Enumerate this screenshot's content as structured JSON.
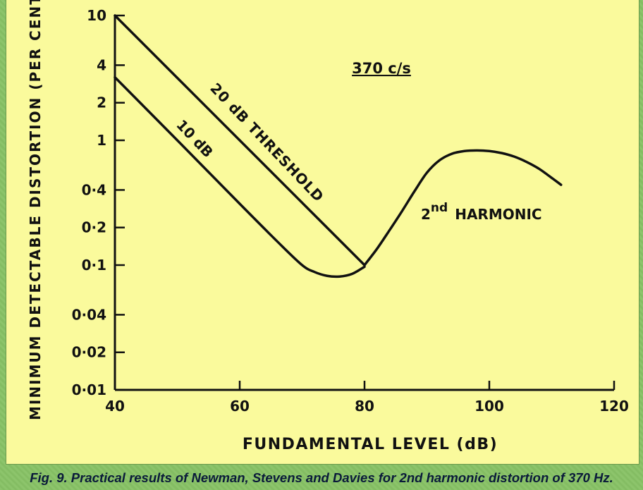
{
  "figure_caption": "Fig. 9. Practical results of Newman, Stevens and Davies for 2nd harmonic distortion of 370 Hz.",
  "colors": {
    "plot_background": "#fafa9c",
    "frame": "#8cc26a",
    "ink": "#111111",
    "caption_text": "#0a1a3a"
  },
  "chart_data": {
    "type": "line",
    "title": "370 c/s",
    "xlabel": "FUNDAMENTAL LEVEL (dB)",
    "ylabel": "MINIMUM DETECTABLE DISTORTION (PER CENT)",
    "xlim": [
      40,
      120
    ],
    "ylim": [
      0.01,
      10
    ],
    "yscale": "log",
    "grid": false,
    "xticks": [
      40,
      60,
      80,
      100,
      120
    ],
    "xtick_labels": [
      "40",
      "60",
      "80",
      "100",
      "120"
    ],
    "yticks": [
      10,
      4,
      2,
      1,
      0.4,
      0.2,
      0.1,
      0.04,
      0.02,
      0.01
    ],
    "ytick_labels": [
      "10",
      "4",
      "2",
      "1",
      "0·4",
      "0·2",
      "0·1",
      "0·04",
      "0·02",
      "0·01"
    ],
    "series": [
      {
        "name": "20 dB THRESHOLD",
        "x": [
          40,
          80
        ],
        "y": [
          10,
          0.1
        ]
      },
      {
        "name": "10 dB",
        "x": [
          40,
          50,
          60,
          66,
          70,
          72,
          74,
          76,
          78,
          80
        ],
        "y": [
          3.2,
          1.0,
          0.31,
          0.155,
          0.1,
          0.088,
          0.082,
          0.081,
          0.085,
          0.097
        ]
      },
      {
        "name": "2nd HARMONIC",
        "x": [
          80,
          82,
          84,
          86,
          88,
          90,
          92,
          94,
          96,
          98,
          100,
          102,
          104,
          106,
          108,
          110,
          111.5
        ],
        "y": [
          0.1,
          0.135,
          0.19,
          0.27,
          0.39,
          0.55,
          0.69,
          0.78,
          0.82,
          0.83,
          0.82,
          0.79,
          0.74,
          0.67,
          0.59,
          0.5,
          0.44
        ]
      }
    ],
    "annotations": [
      {
        "text": "20 dB THRESHOLD",
        "series": "20 dB THRESHOLD"
      },
      {
        "text": "10 dB",
        "series": "10 dB"
      },
      {
        "text": "2",
        "suffix": "nd",
        "rest": "HARMONIC",
        "series": "2nd HARMONIC"
      }
    ]
  }
}
